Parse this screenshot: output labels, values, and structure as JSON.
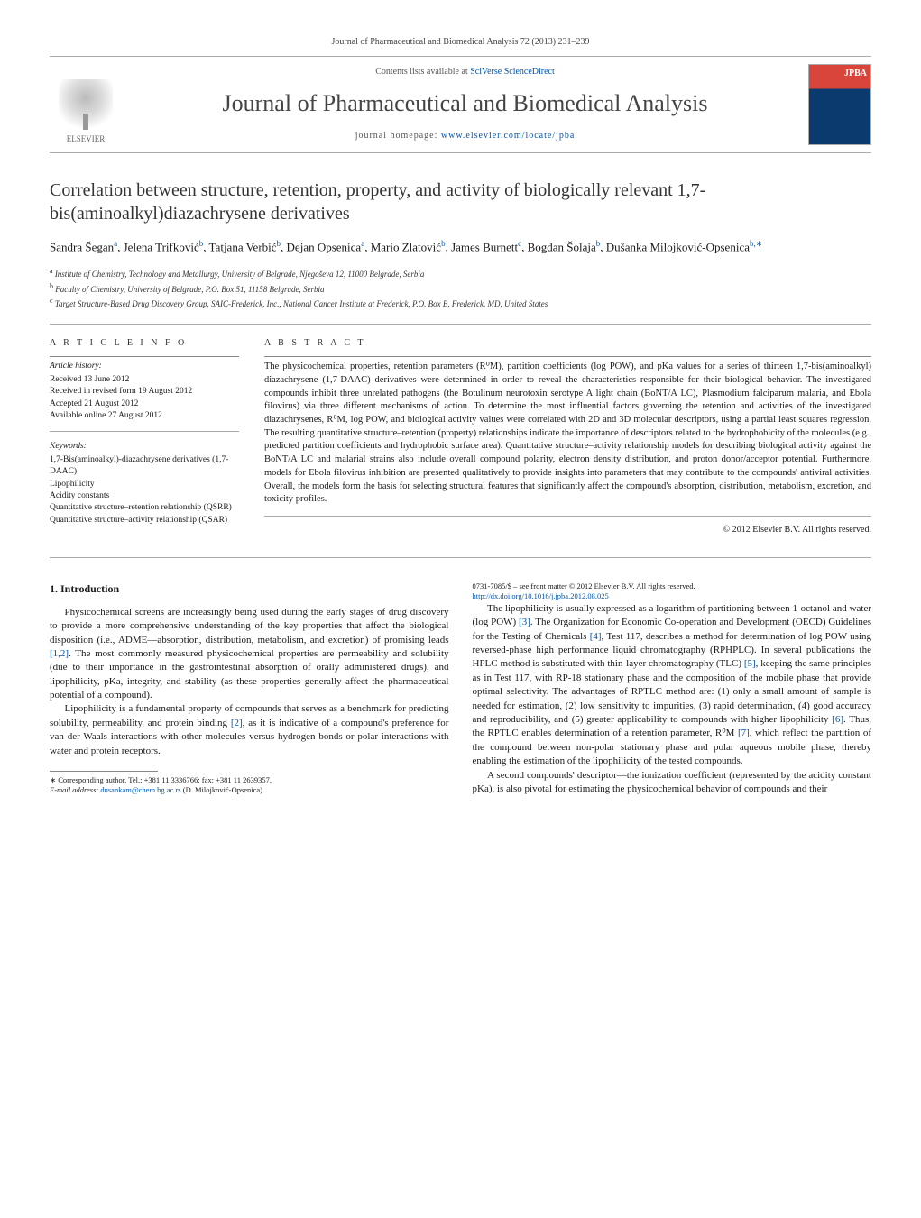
{
  "journal_ref": "Journal of Pharmaceutical and Biomedical Analysis 72 (2013) 231–239",
  "header": {
    "contents_prefix": "Contents lists available at ",
    "contents_link": "SciVerse ScienceDirect",
    "journal_name": "Journal of Pharmaceutical and Biomedical Analysis",
    "homepage_prefix": "journal homepage: ",
    "homepage_url": "www.elsevier.com/locate/jpba",
    "elsevier_label": "ELSEVIER",
    "cover_label": "JPBA"
  },
  "title": "Correlation between structure, retention, property, and activity of biologically relevant 1,7-bis(aminoalkyl)diazachrysene derivatives",
  "authors_html": "Sandra Šegan|a|, Jelena Trifković|b|, Tatjana Verbić|b|, Dejan Opsenica|a|, Mario Zlatović|b|, James Burnett|c|, Bogdan Šolaja|b|, Dušanka Milojković-Opsenica|b,∗|",
  "affiliations": {
    "a": "Institute of Chemistry, Technology and Metallurgy, University of Belgrade, Njegoševa 12, 11000 Belgrade, Serbia",
    "b": "Faculty of Chemistry, University of Belgrade, P.O. Box 51, 11158 Belgrade, Serbia",
    "c": "Target Structure-Based Drug Discovery Group, SAIC-Frederick, Inc., National Cancer Institute at Frederick, P.O. Box B, Frederick, MD, United States"
  },
  "article_info": {
    "heading": "A R T I C L E   I N F O",
    "history_label": "Article history:",
    "history": [
      "Received 13 June 2012",
      "Received in revised form 19 August 2012",
      "Accepted 21 August 2012",
      "Available online 27 August 2012"
    ],
    "keywords_label": "Keywords:",
    "keywords": [
      "1,7-Bis(aminoalkyl)-diazachrysene derivatives (1,7-DAAC)",
      "Lipophilicity",
      "Acidity constants",
      "Quantitative structure–retention relationship (QSRR)",
      "Quantitative structure–activity relationship (QSAR)"
    ]
  },
  "abstract": {
    "heading": "A B S T R A C T",
    "text": "The physicochemical properties, retention parameters (R⁰M), partition coefficients (log POW), and pKa values for a series of thirteen 1,7-bis(aminoalkyl) diazachrysene (1,7-DAAC) derivatives were determined in order to reveal the characteristics responsible for their biological behavior. The investigated compounds inhibit three unrelated pathogens (the Botulinum neurotoxin serotype A light chain (BoNT/A LC), Plasmodium falciparum malaria, and Ebola filovirus) via three different mechanisms of action. To determine the most influential factors governing the retention and activities of the investigated diazachrysenes, R⁰M, log POW, and biological activity values were correlated with 2D and 3D molecular descriptors, using a partial least squares regression. The resulting quantitative structure–retention (property) relationships indicate the importance of descriptors related to the hydrophobicity of the molecules (e.g., predicted partition coefficients and hydrophobic surface area). Quantitative structure–activity relationship models for describing biological activity against the BoNT/A LC and malarial strains also include overall compound polarity, electron density distribution, and proton donor/acceptor potential. Furthermore, models for Ebola filovirus inhibition are presented qualitatively to provide insights into parameters that may contribute to the compounds' antiviral activities. Overall, the models form the basis for selecting structural features that significantly affect the compound's absorption, distribution, metabolism, excretion, and toxicity profiles.",
    "copyright": "© 2012 Elsevier B.V. All rights reserved."
  },
  "body": {
    "section_heading": "1. Introduction",
    "p1": "Physicochemical screens are increasingly being used during the early stages of drug discovery to provide a more comprehensive understanding of the key properties that affect the biological disposition (i.e., ADME—absorption, distribution, metabolism, and excretion) of promising leads [1,2]. The most commonly measured physicochemical properties are permeability and solubility (due to their importance in the gastrointestinal absorption of orally administered drugs), and lipophilicity, pKa, integrity, and stability (as these properties generally affect the pharmaceutical potential of a compound).",
    "p2": "Lipophilicity is a fundamental property of compounds that serves as a benchmark for predicting solubility, permeability, and protein binding [2], as it is indicative of a compound's preference for van der Waals interactions with other molecules versus hydrogen bonds or polar interactions with water and protein receptors.",
    "p3": "The lipophilicity is usually expressed as a logarithm of partitioning between 1-octanol and water (log POW) [3]. The Organization for Economic Co-operation and Development (OECD) Guidelines for the Testing of Chemicals [4], Test 117, describes a method for determination of log POW using reversed-phase high performance liquid chromatography (RPHPLC). In several publications the HPLC method is substituted with thin-layer chromatography (TLC) [5], keeping the same principles as in Test 117, with RP-18 stationary phase and the composition of the mobile phase that provide optimal selectivity. The advantages of RPTLC method are: (1) only a small amount of sample is needed for estimation, (2) low sensitivity to impurities, (3) rapid determination, (4) good accuracy and reproducibility, and (5) greater applicability to compounds with higher lipophilicity [6]. Thus, the RPTLC enables determination of a retention parameter, R⁰M [7], which reflect the partition of the compound between non-polar stationary phase and polar aqueous mobile phase, thereby enabling the estimation of the lipophilicity of the tested compounds.",
    "p4": "A second compounds' descriptor—the ionization coefficient (represented by the acidity constant pKa), is also pivotal for estimating the physicochemical behavior of compounds and their"
  },
  "footnote": {
    "corr": "∗ Corresponding author. Tel.: +381 11 3336766; fax: +381 11 2639357.",
    "email_label": "E-mail address: ",
    "email": "dusankam@chem.bg.ac.rs",
    "email_who": " (D. Milojković-Opsenica)."
  },
  "bottom": {
    "issn": "0731-7085/$ – see front matter © 2012 Elsevier B.V. All rights reserved.",
    "doi": "http://dx.doi.org/10.1016/j.jpba.2012.08.025"
  },
  "colors": {
    "link": "#0055aa",
    "text": "#1a1a1a",
    "rule": "#aaaaaa",
    "cover_top": "#d9453a",
    "cover_bottom": "#0b3a6e"
  }
}
